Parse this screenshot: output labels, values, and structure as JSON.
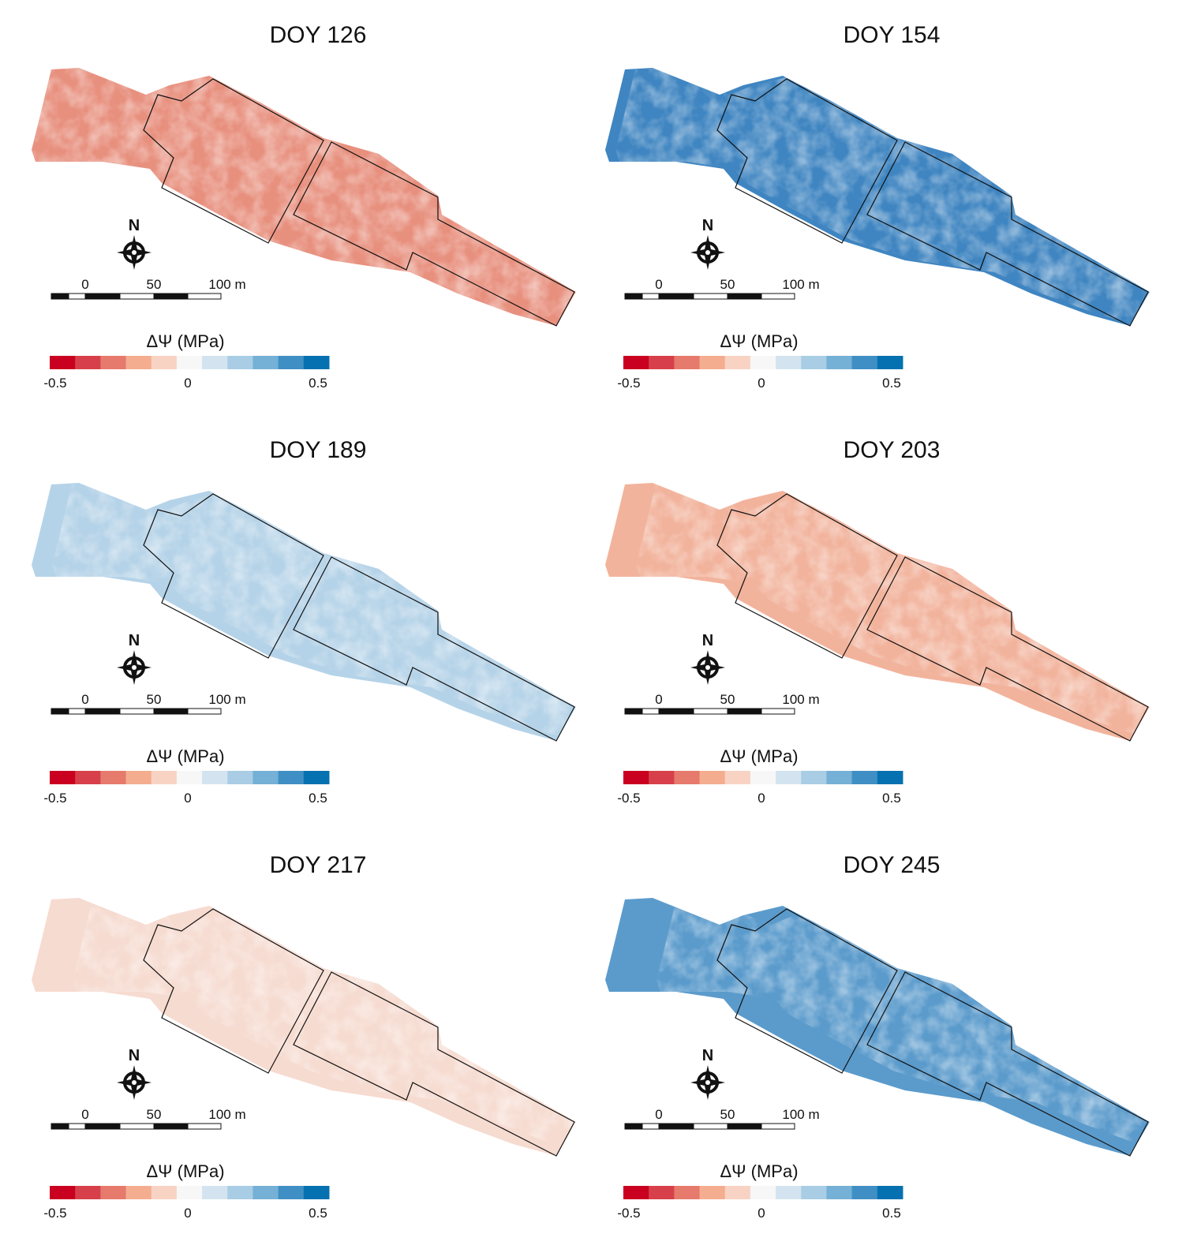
{
  "legend_colors": [
    "#ca0020",
    "#d7404a",
    "#e67a6c",
    "#f4ad8f",
    "#f8d3c3",
    "#f7f7f7",
    "#d3e4f0",
    "#a8cde4",
    "#75b0d6",
    "#3f8fc4",
    "#0571b0"
  ],
  "panels": [
    {
      "title": "DOY 126",
      "color": "#e8907e",
      "north": "N",
      "scale_labels": [
        "0",
        "50",
        "100 m"
      ],
      "legend_title": "ΔΨ (MPa)",
      "legend_labels": [
        "-0.5",
        "0",
        "0.5"
      ]
    },
    {
      "title": "DOY 154",
      "color": "#3f85c1",
      "north": "N",
      "scale_labels": [
        "0",
        "50",
        "100 m"
      ],
      "legend_title": "ΔΨ (MPa)",
      "legend_labels": [
        "-0.5",
        "0",
        "0.5"
      ]
    },
    {
      "title": "DOY 189",
      "color": "#b5d3e8",
      "north": "N",
      "scale_labels": [
        "0",
        "50",
        "100 m"
      ],
      "legend_title": "ΔΨ (MPa)",
      "legend_labels": [
        "-0.5",
        "0",
        "0.5"
      ]
    },
    {
      "title": "DOY 203",
      "color": "#f2b39c",
      "north": "N",
      "scale_labels": [
        "0",
        "50",
        "100 m"
      ],
      "legend_title": "ΔΨ (MPa)",
      "legend_labels": [
        "-0.5",
        "0",
        "0.5"
      ]
    },
    {
      "title": "DOY 217",
      "color": "#f6dbd0",
      "north": "N",
      "scale_labels": [
        "0",
        "50",
        "100 m"
      ],
      "legend_title": "ΔΨ (MPa)",
      "legend_labels": [
        "-0.5",
        "0",
        "0.5"
      ]
    },
    {
      "title": "DOY 245",
      "color": "#5b9bcc",
      "north": "N",
      "scale_labels": [
        "0",
        "50",
        "100 m"
      ],
      "legend_title": "ΔΨ (MPa)",
      "legend_labels": [
        "-0.5",
        "0",
        "0.5"
      ]
    }
  ]
}
